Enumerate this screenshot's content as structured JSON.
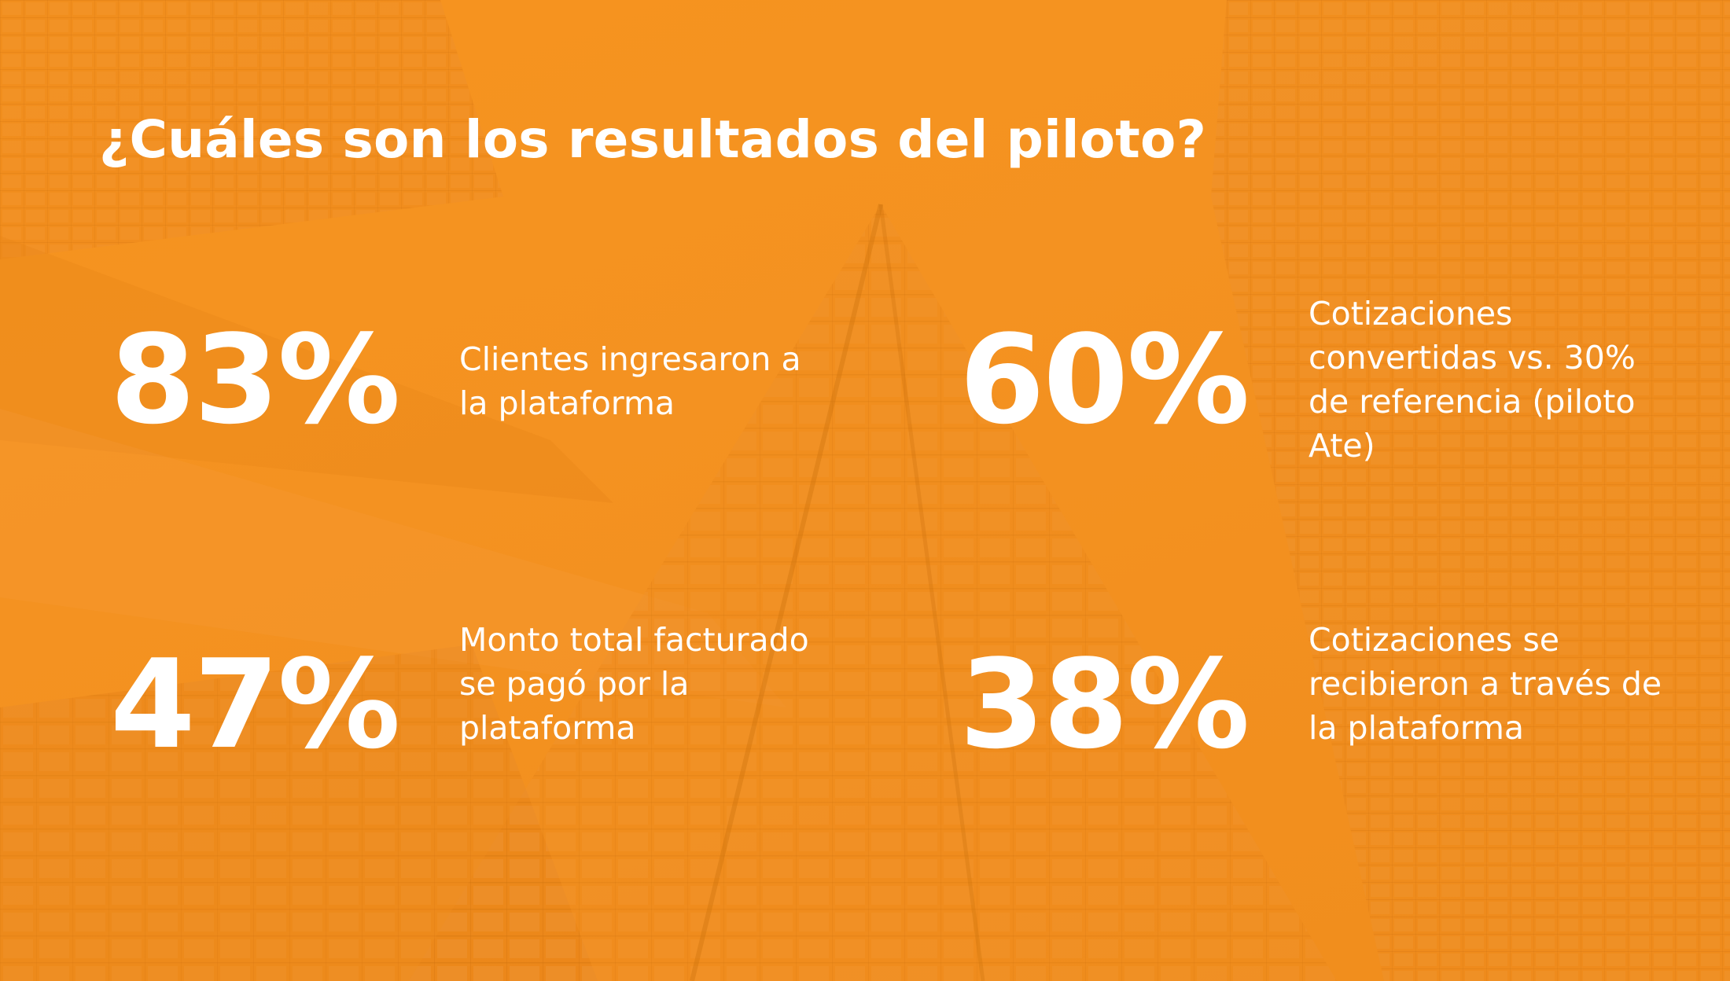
{
  "slide": {
    "title": "¿Cuáles son los resultados del piloto?",
    "accent_color": "#f7941f",
    "stats": [
      {
        "value": "83%",
        "lines": [
          "Clientes ingresaron a",
          "la plataforma"
        ]
      },
      {
        "value": "60%",
        "lines": [
          "Cotizaciones",
          "convertidas vs. 30%",
          "de referencia (piloto",
          "Ate)"
        ]
      },
      {
        "value": "47%",
        "lines": [
          "Monto total facturado",
          "se pagó por la",
          "plataforma"
        ]
      },
      {
        "value": "38%",
        "lines": [
          "Cotizaciones se",
          "recibieron a través de",
          "la plataforma"
        ]
      }
    ]
  }
}
